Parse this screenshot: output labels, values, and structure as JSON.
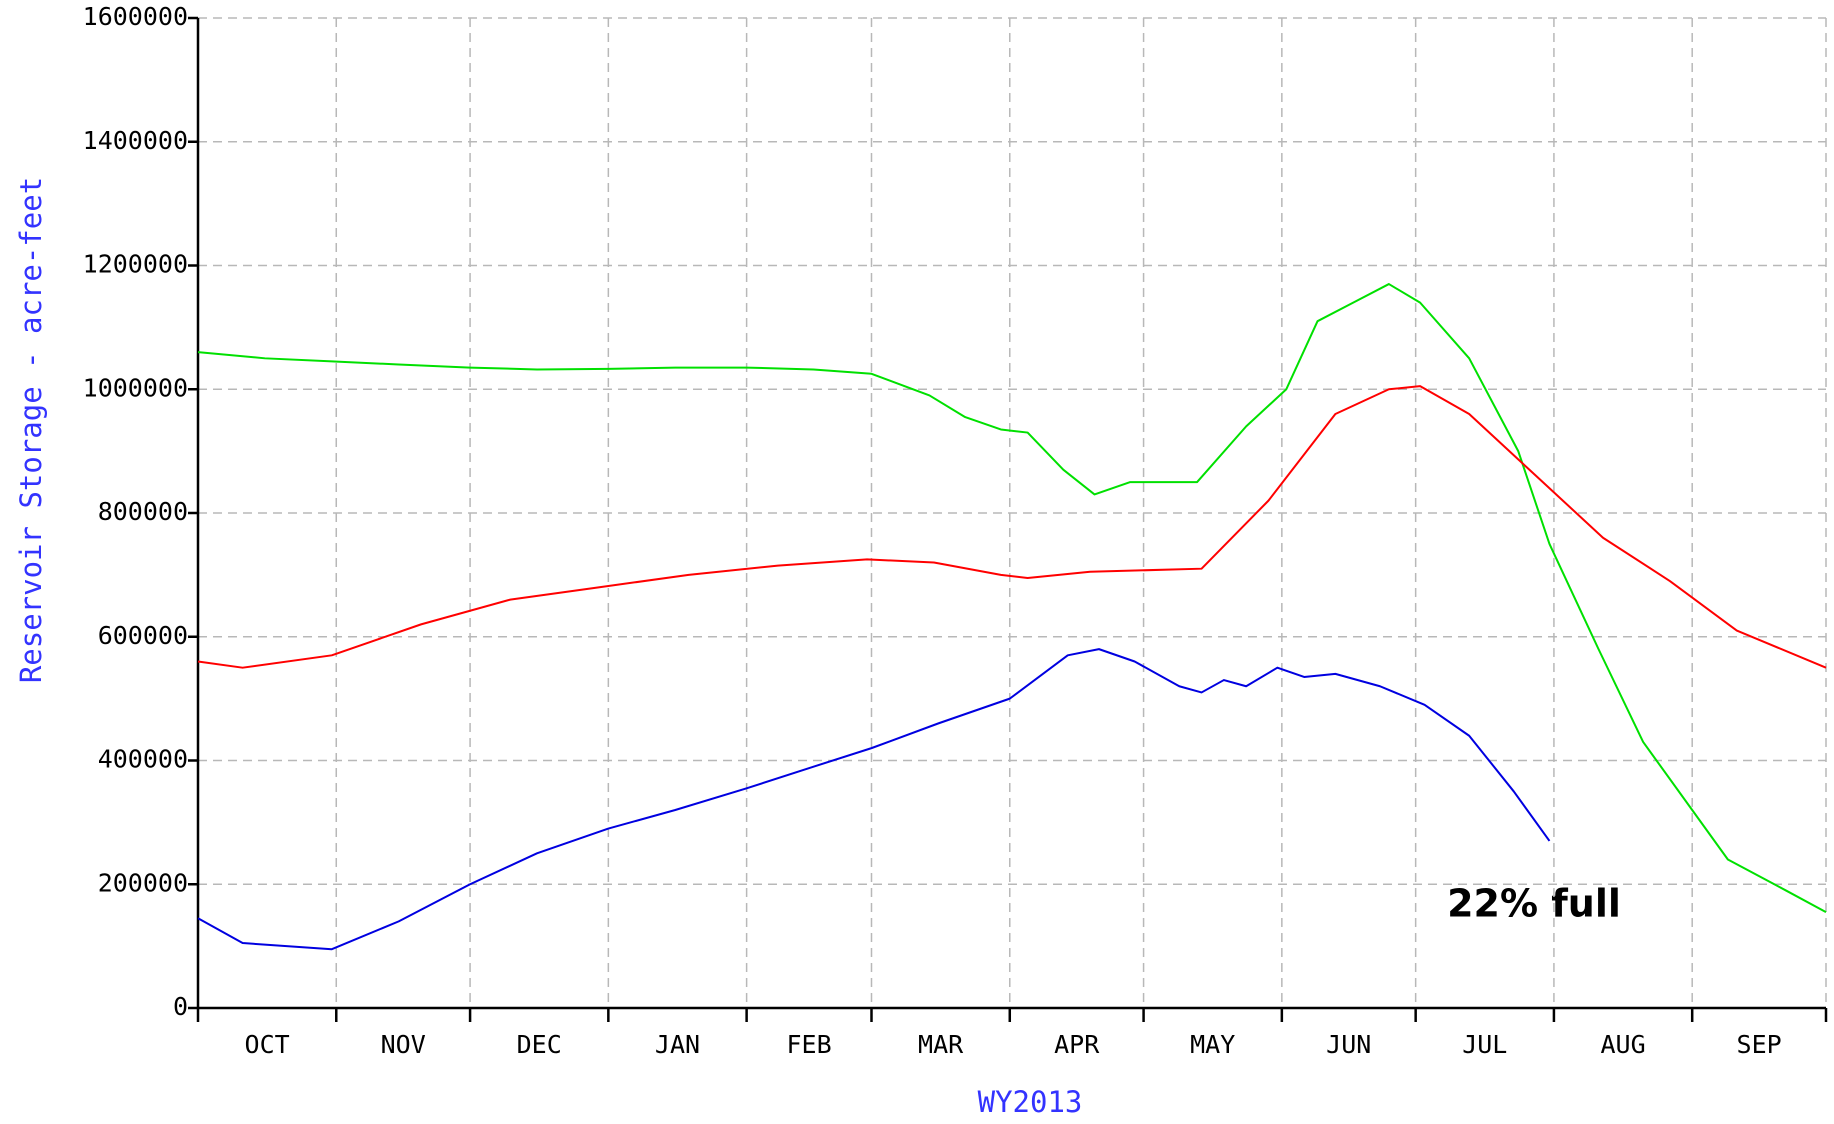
{
  "chart_data": {
    "type": "line",
    "ylabel": "Reservoir Storage - acre-feet",
    "xlabel": "WY2013",
    "annotation": "22% full",
    "categories": [
      "OCT",
      "NOV",
      "DEC",
      "JAN",
      "FEB",
      "MAR",
      "APR",
      "MAY",
      "JUN",
      "JUL",
      "AUG",
      "SEP"
    ],
    "xlim": [
      0,
      365
    ],
    "xticks": [
      0,
      31,
      61,
      92,
      123,
      151,
      182,
      212,
      243,
      273,
      304,
      335,
      365
    ],
    "ylim": [
      0,
      1600000
    ],
    "yticks": [
      0,
      200000,
      400000,
      600000,
      800000,
      1000000,
      1200000,
      1400000,
      1600000
    ],
    "grid": true,
    "series": [
      {
        "color": "#00e000",
        "x": [
          0,
          15,
          30,
          45,
          61,
          76,
          92,
          107,
          123,
          138,
          151,
          164,
          172,
          180,
          186,
          194,
          201,
          209,
          224,
          235,
          244,
          251,
          259,
          267,
          274,
          285,
          296,
          303,
          314,
          324,
          335,
          343,
          356,
          365
        ],
        "values": [
          1060000,
          1050000,
          1045000,
          1040000,
          1035000,
          1032000,
          1033000,
          1035000,
          1035000,
          1032000,
          1025000,
          990000,
          955000,
          935000,
          930000,
          870000,
          830000,
          850000,
          850000,
          940000,
          1000000,
          1110000,
          1140000,
          1170000,
          1140000,
          1050000,
          900000,
          750000,
          580000,
          430000,
          320000,
          240000,
          190000,
          155000
        ]
      },
      {
        "color": "#ff0000",
        "x": [
          0,
          10,
          30,
          50,
          70,
          90,
          110,
          130,
          150,
          165,
          180,
          186,
          200,
          225,
          240,
          255,
          267,
          274,
          285,
          300,
          315,
          330,
          345,
          365
        ],
        "values": [
          560000,
          550000,
          570000,
          620000,
          660000,
          680000,
          700000,
          715000,
          725000,
          720000,
          700000,
          695000,
          705000,
          710000,
          820000,
          960000,
          1000000,
          1005000,
          960000,
          860000,
          760000,
          690000,
          610000,
          550000
        ]
      },
      {
        "color": "#0000e0",
        "x": [
          0,
          10,
          30,
          45,
          61,
          76,
          92,
          107,
          123,
          138,
          151,
          166,
          182,
          195,
          202,
          210,
          220,
          225,
          230,
          235,
          242,
          248,
          255,
          265,
          275,
          285,
          295,
          303
        ],
        "values": [
          145000,
          105000,
          95000,
          140000,
          200000,
          250000,
          290000,
          320000,
          355000,
          390000,
          420000,
          460000,
          500000,
          570000,
          580000,
          560000,
          520000,
          510000,
          530000,
          520000,
          550000,
          535000,
          540000,
          520000,
          490000,
          440000,
          350000,
          270000
        ]
      }
    ]
  }
}
